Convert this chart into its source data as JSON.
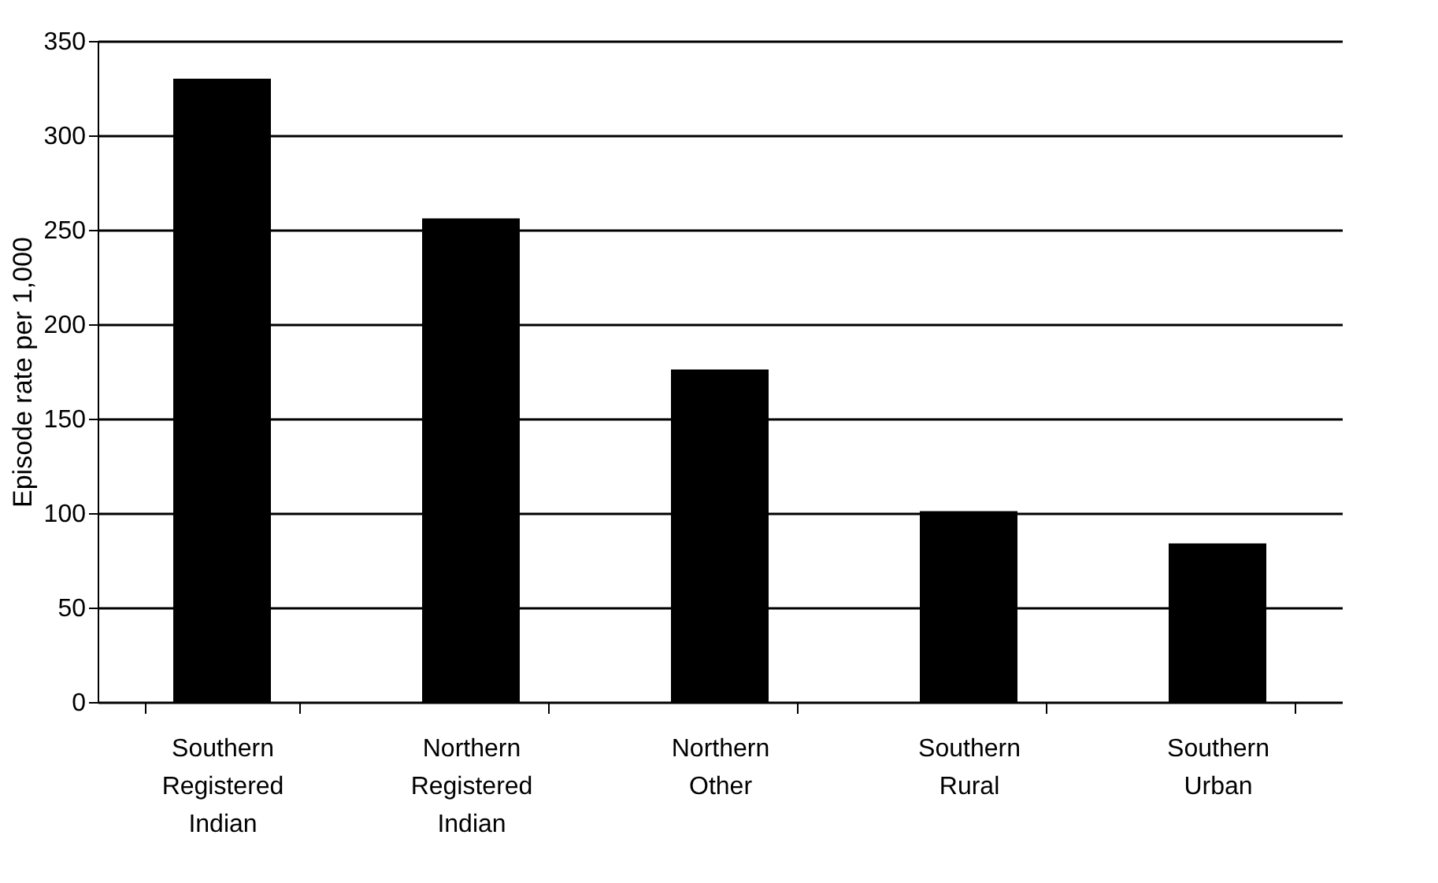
{
  "chart_data": {
    "type": "bar",
    "ylabel": "Episode rate per 1,000",
    "categories": [
      "Southern Registered Indian",
      "Northern Registered Indian",
      "Northern Other",
      "Southern Rural",
      "Southern Urban"
    ],
    "values": [
      330,
      256,
      176,
      101,
      84
    ],
    "color": "#000000",
    "ylim": [
      0,
      350
    ],
    "yticks": [
      0,
      50,
      100,
      150,
      200,
      250,
      300,
      350
    ],
    "grid": "y",
    "legend": false
  }
}
